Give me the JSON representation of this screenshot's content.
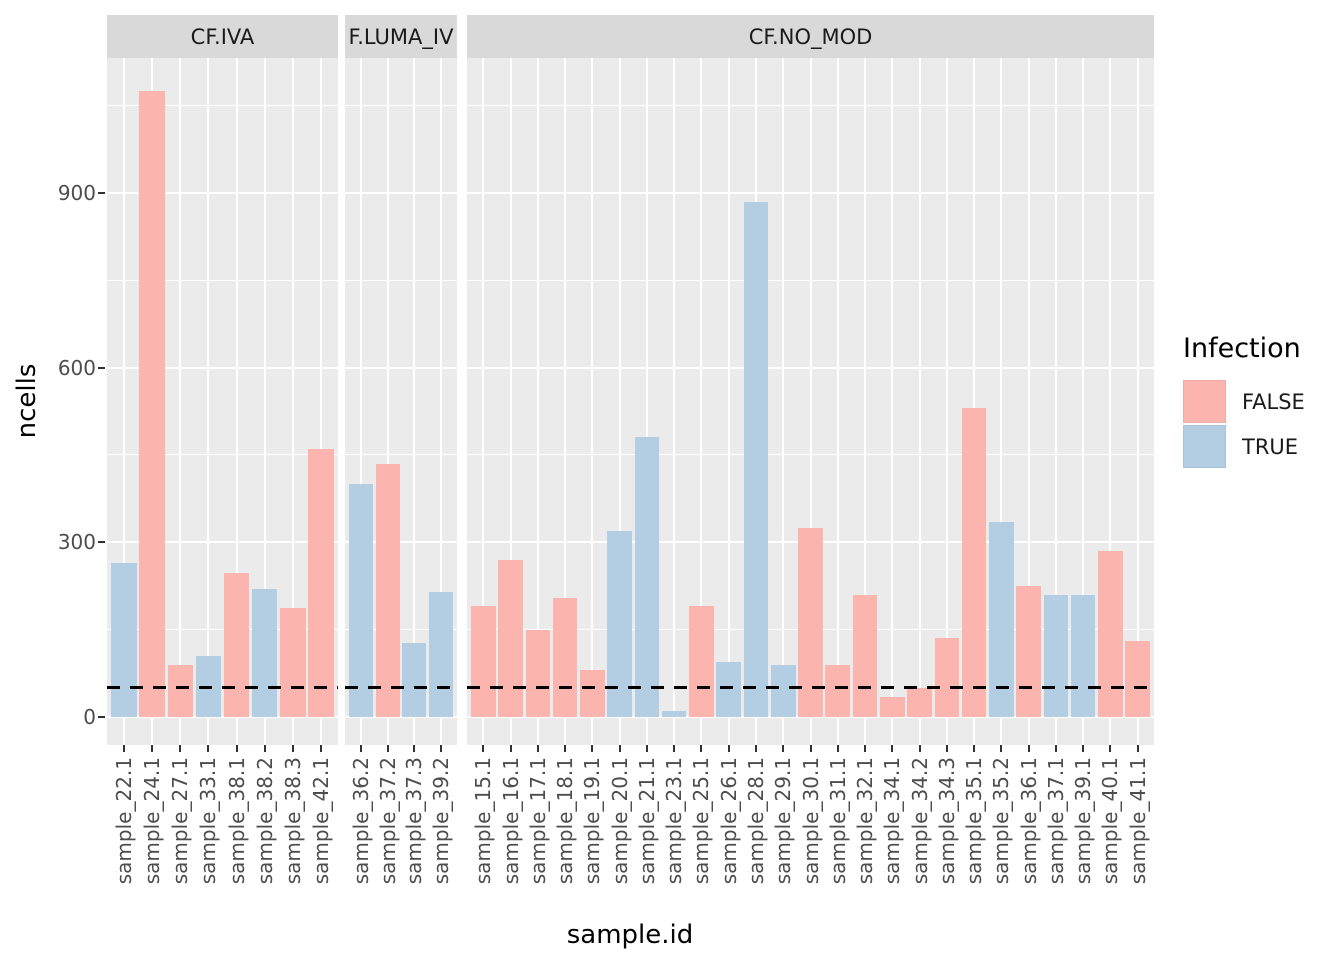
{
  "axes": {
    "y_title": "ncells",
    "x_title": "sample.id",
    "y_ticks": [
      0,
      300,
      600,
      900
    ]
  },
  "legend": {
    "title": "Infection",
    "entries": [
      {
        "label": "FALSE",
        "color": "#FBB4AE"
      },
      {
        "label": "TRUE",
        "color": "#B3CDE3"
      }
    ]
  },
  "hline": {
    "value": 50,
    "style": "dashed",
    "color": "#000000"
  },
  "colors": {
    "background": "#FFFFFF",
    "panel_bg": "#EBEBEB",
    "strip_bg": "#D9D9D9",
    "strip_text": "#1A1A1A",
    "grid": "#FFFFFF",
    "tick_mark": "#333333",
    "tick_text": "#4D4D4D",
    "axis_title": "#000000",
    "bar_false": "#FBB4AE",
    "bar_true": "#B3CDE3"
  },
  "chart_data": {
    "type": "bar",
    "title": "",
    "xlabel": "sample.id",
    "ylabel": "ncells",
    "ylim": [
      0,
      1100
    ],
    "y_major_breaks": [
      0,
      300,
      600,
      900
    ],
    "y_minor_breaks": [
      150,
      450,
      750,
      1050
    ],
    "grid": true,
    "legend_position": "right",
    "legend_title": "Infection",
    "threshold_line": 50,
    "facets": [
      {
        "label": "CF.IVA",
        "bars": [
          {
            "sample": "sample_22.1",
            "infection": "TRUE",
            "ncells": 265
          },
          {
            "sample": "sample_24.1",
            "infection": "FALSE",
            "ncells": 1075
          },
          {
            "sample": "sample_27.1",
            "infection": "FALSE",
            "ncells": 90
          },
          {
            "sample": "sample_33.1",
            "infection": "TRUE",
            "ncells": 105
          },
          {
            "sample": "sample_38.1",
            "infection": "FALSE",
            "ncells": 247
          },
          {
            "sample": "sample_38.2",
            "infection": "TRUE",
            "ncells": 220
          },
          {
            "sample": "sample_38.3",
            "infection": "FALSE",
            "ncells": 187
          },
          {
            "sample": "sample_42.1",
            "infection": "FALSE",
            "ncells": 460
          }
        ]
      },
      {
        "label": "F.LUMA_IV",
        "bars": [
          {
            "sample": "sample_36.2",
            "infection": "TRUE",
            "ncells": 400
          },
          {
            "sample": "sample_37.2",
            "infection": "FALSE",
            "ncells": 435
          },
          {
            "sample": "sample_37.3",
            "infection": "TRUE",
            "ncells": 127
          },
          {
            "sample": "sample_39.2",
            "infection": "TRUE",
            "ncells": 215
          }
        ]
      },
      {
        "label": "CF.NO_MOD",
        "bars": [
          {
            "sample": "sample_15.1",
            "infection": "FALSE",
            "ncells": 190
          },
          {
            "sample": "sample_16.1",
            "infection": "FALSE",
            "ncells": 270
          },
          {
            "sample": "sample_17.1",
            "infection": "FALSE",
            "ncells": 150
          },
          {
            "sample": "sample_18.1",
            "infection": "FALSE",
            "ncells": 205
          },
          {
            "sample": "sample_19.1",
            "infection": "FALSE",
            "ncells": 80
          },
          {
            "sample": "sample_20.1",
            "infection": "TRUE",
            "ncells": 320
          },
          {
            "sample": "sample_21.1",
            "infection": "TRUE",
            "ncells": 480
          },
          {
            "sample": "sample_23.1",
            "infection": "TRUE",
            "ncells": 10
          },
          {
            "sample": "sample_25.1",
            "infection": "FALSE",
            "ncells": 190
          },
          {
            "sample": "sample_26.1",
            "infection": "TRUE",
            "ncells": 95
          },
          {
            "sample": "sample_28.1",
            "infection": "TRUE",
            "ncells": 885
          },
          {
            "sample": "sample_29.1",
            "infection": "TRUE",
            "ncells": 90
          },
          {
            "sample": "sample_30.1",
            "infection": "FALSE",
            "ncells": 325
          },
          {
            "sample": "sample_31.1",
            "infection": "FALSE",
            "ncells": 90
          },
          {
            "sample": "sample_32.1",
            "infection": "FALSE",
            "ncells": 210
          },
          {
            "sample": "sample_34.1",
            "infection": "FALSE",
            "ncells": 35
          },
          {
            "sample": "sample_34.2",
            "infection": "FALSE",
            "ncells": 50
          },
          {
            "sample": "sample_34.3",
            "infection": "FALSE",
            "ncells": 135
          },
          {
            "sample": "sample_35.1",
            "infection": "FALSE",
            "ncells": 530
          },
          {
            "sample": "sample_35.2",
            "infection": "TRUE",
            "ncells": 335
          },
          {
            "sample": "sample_36.1",
            "infection": "FALSE",
            "ncells": 225
          },
          {
            "sample": "sample_37.1",
            "infection": "TRUE",
            "ncells": 210
          },
          {
            "sample": "sample_39.1",
            "infection": "TRUE",
            "ncells": 210
          },
          {
            "sample": "sample_40.1",
            "infection": "FALSE",
            "ncells": 285
          },
          {
            "sample": "sample_41.1",
            "infection": "FALSE",
            "ncells": 130
          }
        ]
      }
    ]
  }
}
